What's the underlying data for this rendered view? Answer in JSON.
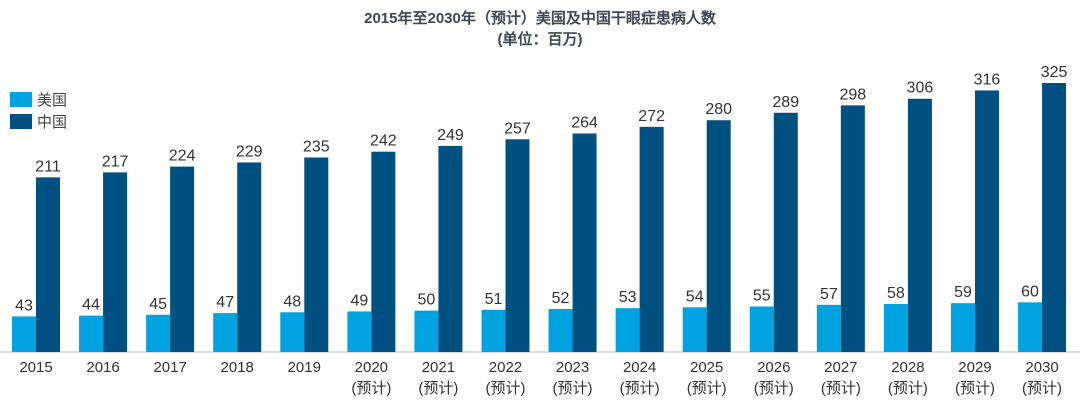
{
  "chart_data": {
    "type": "bar",
    "title": "2015年至2030年（预计）美国及中国干眼症患病人数",
    "subtitle": "(单位：百万)",
    "xlabel": "",
    "ylabel": "",
    "ylim": [
      0,
      330
    ],
    "grid": false,
    "legend_position": "top-left",
    "categories": [
      "2015",
      "2016",
      "2017",
      "2018",
      "2019",
      "2020",
      "2021",
      "2022",
      "2023",
      "2024",
      "2025",
      "2026",
      "2027",
      "2028",
      "2029",
      "2030"
    ],
    "category_notes": [
      "",
      "",
      "",
      "",
      "",
      "(预计)",
      "(预计)",
      "(预计)",
      "(预计)",
      "(预计)",
      "(预计)",
      "(预计)",
      "(预计)",
      "(预计)",
      "(预计)",
      "(预计)"
    ],
    "series": [
      {
        "name": "美国",
        "color": "#00a3e0",
        "values": [
          43,
          44,
          45,
          47,
          48,
          49,
          50,
          51,
          52,
          53,
          54,
          55,
          57,
          58,
          59,
          60
        ]
      },
      {
        "name": "中国",
        "color": "#005081",
        "values": [
          211,
          217,
          224,
          229,
          235,
          242,
          249,
          257,
          264,
          272,
          280,
          289,
          298,
          306,
          316,
          325
        ]
      }
    ]
  }
}
